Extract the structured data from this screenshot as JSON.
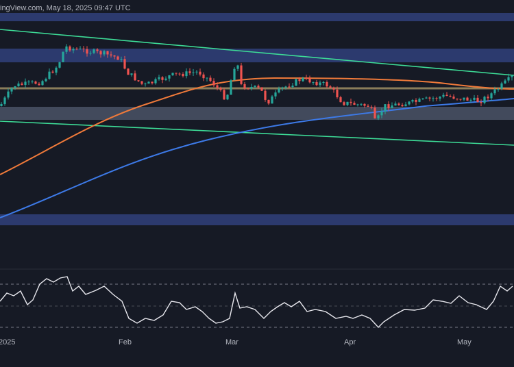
{
  "header": {
    "text": "ingView.com, May 18, 2025 09:47 UTC"
  },
  "x_axis": {
    "labels": [
      "2025",
      "Feb",
      "Mar",
      "Apr",
      "May"
    ]
  }
}
